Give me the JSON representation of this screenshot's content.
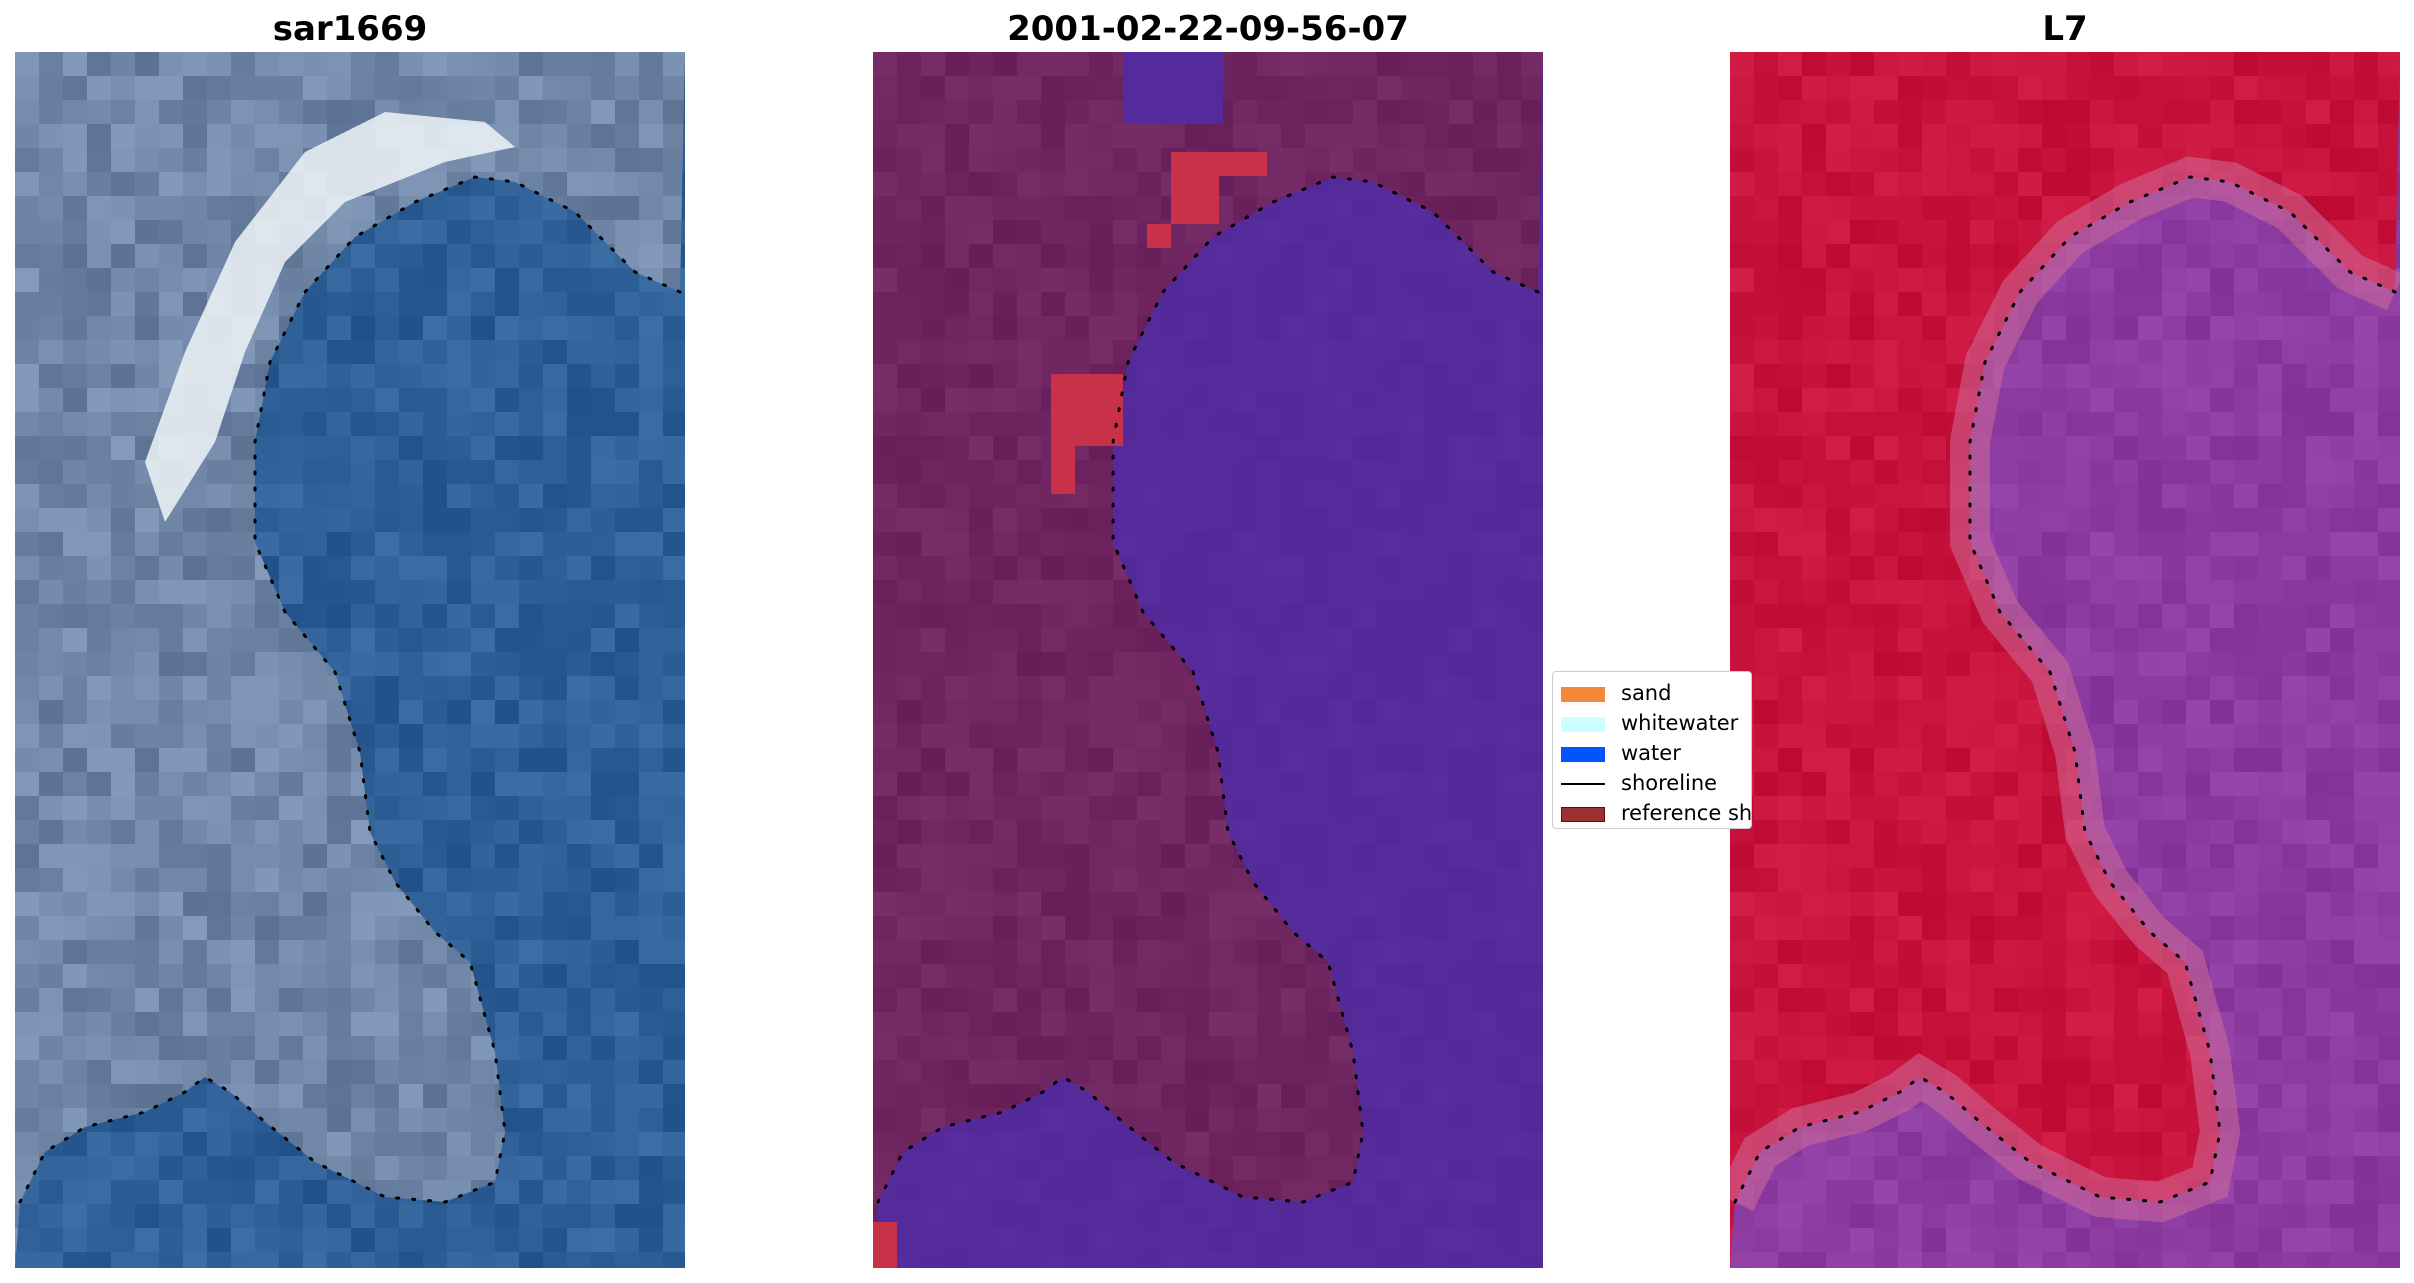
{
  "panels": [
    {
      "title": "sar1669",
      "kind": "rgb"
    },
    {
      "title": "2001-02-22-09-56-07",
      "kind": "classified"
    },
    {
      "title": "L7",
      "kind": "mndwi"
    }
  ],
  "legend": {
    "items": [
      {
        "label": "sand",
        "color": "#f4883a",
        "type": "patch"
      },
      {
        "label": "whitewater",
        "color": "#ccffff",
        "type": "patch"
      },
      {
        "label": "water",
        "color": "#0055ff",
        "type": "patch"
      },
      {
        "label": "shoreline",
        "color": "#000000",
        "type": "line"
      },
      {
        "label": "reference shoreline buffer",
        "color": "#9a3030",
        "type": "patch"
      }
    ]
  },
  "colors": {
    "water_class": "#552a9a",
    "land_class": "#6e2560",
    "buffer_sand": "#c83248",
    "mndwi_land": "#c8143c",
    "mndwi_water": "#8c3ca0",
    "rgb_water": "#2e5f96",
    "rgb_surf": "#f0f4f8",
    "shoreline": "#000000"
  }
}
